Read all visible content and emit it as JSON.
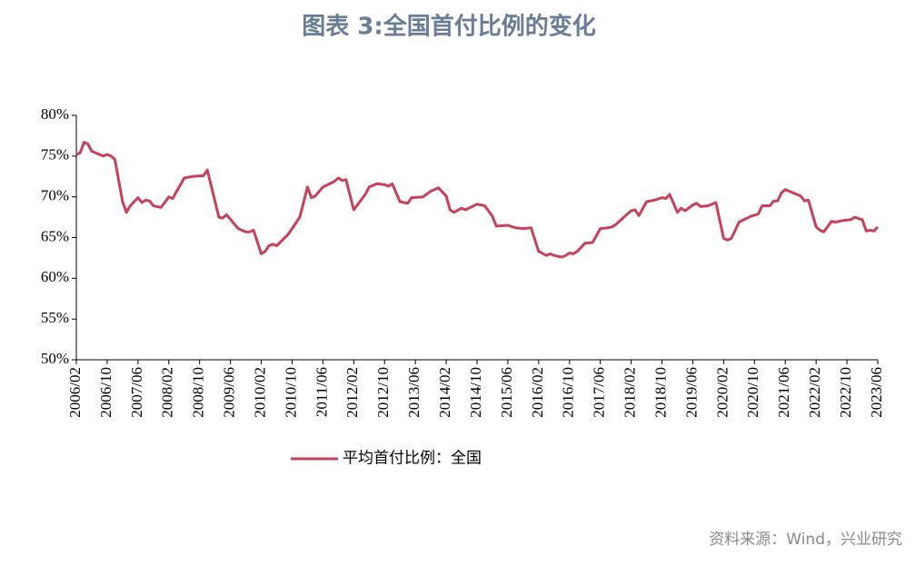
{
  "chart_data": {
    "type": "line",
    "title": "图表 3:全国首付比例的变化",
    "source": "资料来源：Wind，兴业研究",
    "xlim": [
      "2006/02",
      "2023/06"
    ],
    "xticks": [
      "2006/02",
      "2006/10",
      "2007/06",
      "2008/02",
      "2008/10",
      "2009/06",
      "2010/02",
      "2010/10",
      "2011/06",
      "2012/02",
      "2012/10",
      "2013/06",
      "2014/02",
      "2014/10",
      "2015/06",
      "2016/02",
      "2016/10",
      "2017/06",
      "2018/02",
      "2018/10",
      "2019/06",
      "2020/02",
      "2020/10",
      "2021/06",
      "2022/02",
      "2022/10",
      "2023/06"
    ],
    "ylim": [
      50,
      80
    ],
    "yticks": [
      {
        "value": 50,
        "label": "50%"
      },
      {
        "value": 55,
        "label": "55%"
      },
      {
        "value": 60,
        "label": "60%"
      },
      {
        "value": 65,
        "label": "65%"
      },
      {
        "value": 70,
        "label": "70%"
      },
      {
        "value": 75,
        "label": "75%"
      },
      {
        "value": 80,
        "label": "80%"
      }
    ],
    "legend": "bottom",
    "x": [
      "2006/02",
      "2006/03",
      "2006/04",
      "2006/05",
      "2006/06",
      "2006/09",
      "2006/10",
      "2006/11",
      "2006/12",
      "2007/02",
      "2007/03",
      "2007/04",
      "2007/05",
      "2007/06",
      "2007/07",
      "2007/08",
      "2007/09",
      "2007/10",
      "2007/12",
      "2008/02",
      "2008/03",
      "2008/06",
      "2008/08",
      "2008/11",
      "2008/12",
      "2009/03",
      "2009/04",
      "2009/05",
      "2009/08",
      "2009/10",
      "2009/11",
      "2009/12",
      "2010/02",
      "2010/03",
      "2010/04",
      "2010/05",
      "2010/06",
      "2010/09",
      "2010/11",
      "2010/12",
      "2011/02",
      "2011/03",
      "2011/04",
      "2011/06",
      "2011/09",
      "2011/10",
      "2011/11",
      "2011/12",
      "2012/02",
      "2012/05",
      "2012/06",
      "2012/08",
      "2012/10",
      "2012/11",
      "2012/12",
      "2013/02",
      "2013/04",
      "2013/05",
      "2013/08",
      "2013/10",
      "2013/12",
      "2014/02",
      "2014/03",
      "2014/04",
      "2014/06",
      "2014/07",
      "2014/10",
      "2014/12",
      "2015/02",
      "2015/03",
      "2015/06",
      "2015/08",
      "2015/10",
      "2015/12",
      "2016/02",
      "2016/04",
      "2016/05",
      "2016/06",
      "2016/08",
      "2016/09",
      "2016/10",
      "2016/11",
      "2016/12",
      "2017/02",
      "2017/04",
      "2017/06",
      "2017/08",
      "2017/09",
      "2017/10",
      "2018/02",
      "2018/03",
      "2018/04",
      "2018/06",
      "2018/08",
      "2018/10",
      "2018/11",
      "2018/12",
      "2019/02",
      "2019/03",
      "2019/04",
      "2019/06",
      "2019/07",
      "2019/08",
      "2019/10",
      "2019/12",
      "2020/02",
      "2020/03",
      "2020/04",
      "2020/06",
      "2020/09",
      "2020/11",
      "2020/12",
      "2021/02",
      "2021/03",
      "2021/04",
      "2021/05",
      "2021/06",
      "2021/10",
      "2021/11",
      "2021/12",
      "2022/02",
      "2022/03",
      "2022/04",
      "2022/06",
      "2022/07",
      "2022/09",
      "2022/11",
      "2022/12",
      "2023/02",
      "2023/03",
      "2023/04",
      "2023/05",
      "2023/06"
    ],
    "series": [
      {
        "name": "平均首付比例：全国",
        "color": "#c8405a",
        "values": [
          75.2,
          75.4,
          76.7,
          76.5,
          75.6,
          75.0,
          75.2,
          75.0,
          74.6,
          69.4,
          68.1,
          68.9,
          69.4,
          69.9,
          69.3,
          69.6,
          69.5,
          68.9,
          68.7,
          70.0,
          69.8,
          72.3,
          72.5,
          72.6,
          73.3,
          67.5,
          67.4,
          67.8,
          66.1,
          65.7,
          65.7,
          65.9,
          63.0,
          63.3,
          64.0,
          64.2,
          64.0,
          65.4,
          66.8,
          67.5,
          71.2,
          69.9,
          70.1,
          71.2,
          71.9,
          72.3,
          72.0,
          72.1,
          68.4,
          70.3,
          71.2,
          71.6,
          71.5,
          71.3,
          71.6,
          69.4,
          69.2,
          69.9,
          70.0,
          70.7,
          71.1,
          70.1,
          68.4,
          68.1,
          68.6,
          68.4,
          69.1,
          68.9,
          67.6,
          66.4,
          66.5,
          66.2,
          66.1,
          66.2,
          63.3,
          62.8,
          63.0,
          62.8,
          62.6,
          62.8,
          63.1,
          63.0,
          63.3,
          64.3,
          64.4,
          66.1,
          66.2,
          66.3,
          66.6,
          68.3,
          68.4,
          67.7,
          69.4,
          69.6,
          69.9,
          69.8,
          70.3,
          68.1,
          68.6,
          68.3,
          69.0,
          69.2,
          68.8,
          68.9,
          69.3,
          64.9,
          64.7,
          64.9,
          66.9,
          67.6,
          67.9,
          68.9,
          68.9,
          69.5,
          69.5,
          70.5,
          70.9,
          70.1,
          69.5,
          69.6,
          66.3,
          65.9,
          65.7,
          67.0,
          66.9,
          67.1,
          67.2,
          67.5,
          67.2,
          65.8,
          65.9,
          65.8,
          66.3
        ]
      }
    ]
  }
}
